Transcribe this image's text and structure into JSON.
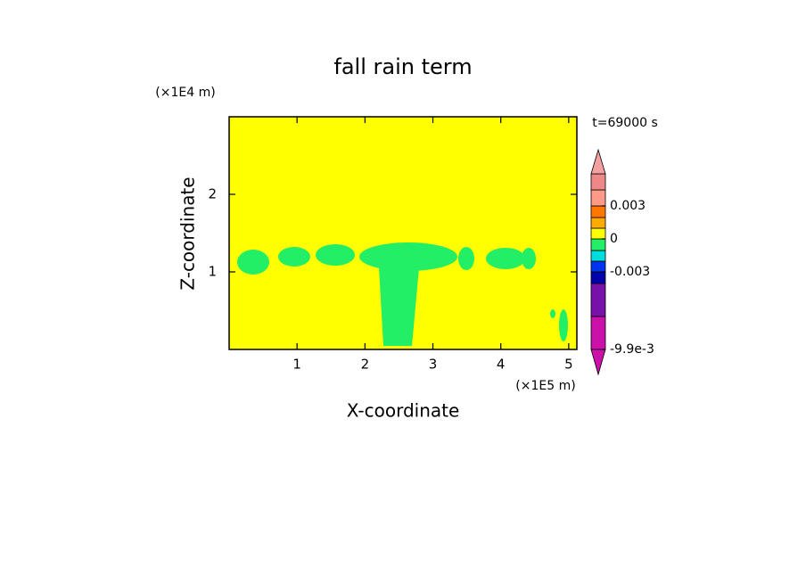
{
  "chart_data": {
    "type": "contour",
    "title": "fall rain term",
    "x_label": "X-coordinate",
    "y_label": "Z-coordinate",
    "x_unit": "(×1E5 m)",
    "y_unit": "(×1E4 m)",
    "time_label": "t=69000 s",
    "xlim": [
      0,
      5.12
    ],
    "xticks": [
      1,
      2,
      3,
      4,
      5
    ],
    "ylim": [
      0,
      3
    ],
    "yticks": [
      1,
      2
    ],
    "background_color": "#ffff00",
    "region_color": "#22ee66",
    "colorbar": {
      "colors": [
        "#cc11aa",
        "#7711aa",
        "#0000aa",
        "#0033ee",
        "#00dddd",
        "#22ee66",
        "#ffff00",
        "#ffaa00",
        "#ff7700",
        "#ff9988",
        "#ee8888"
      ],
      "under_color": "#cc11aa",
      "over_color": "#f4a0a0",
      "ticks": [
        {
          "value": -0.0099,
          "label": "-9.9e-3"
        },
        -0.003,
        0,
        0.003
      ]
    }
  }
}
